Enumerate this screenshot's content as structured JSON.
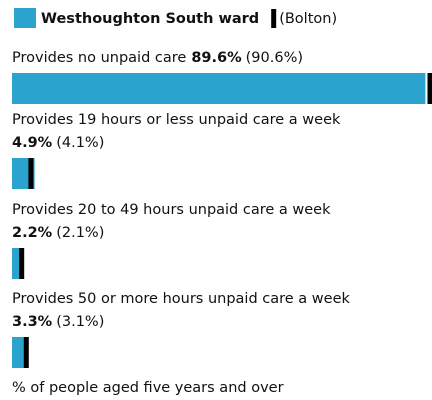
{
  "chart_data": {
    "type": "bar",
    "categories": [
      "Provides no unpaid care",
      "Provides 19 hours or less unpaid care a week",
      "Provides 20 to 49 hours unpaid care a week",
      "Provides 50 or more hours unpaid care a week"
    ],
    "series": [
      {
        "name": "Westhoughton South ward",
        "color": "#2aa3cf",
        "values": [
          89.6,
          4.9,
          2.2,
          3.3
        ],
        "value_labels": [
          "89.6%",
          "4.9%",
          "2.2%",
          "3.3%"
        ]
      },
      {
        "name": "(Bolton)",
        "color": "#000000",
        "values": [
          90.6,
          4.1,
          2.1,
          3.1
        ],
        "value_labels": [
          "(90.6%)",
          "(4.1%)",
          "(2.1%)",
          "(3.1%)"
        ]
      }
    ],
    "xlim": [
      0,
      90.6
    ],
    "x_label": "% of people aged five years and over"
  }
}
